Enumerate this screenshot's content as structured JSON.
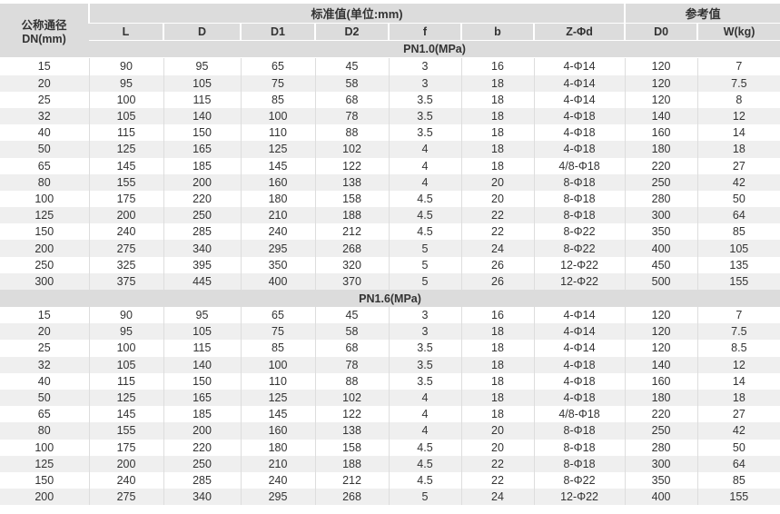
{
  "header": {
    "dn": "公称通径",
    "dn_unit": "DN(mm)",
    "standard": "标准值(单位:mm)",
    "reference": "参考值",
    "columns": [
      "L",
      "D",
      "D1",
      "D2",
      "f",
      "b",
      "Z-Φd",
      "D0",
      "W(kg)"
    ]
  },
  "sections": [
    {
      "title": "PN1.0(MPa)",
      "rows": [
        [
          "15",
          "90",
          "95",
          "65",
          "45",
          "3",
          "16",
          "4-Φ14",
          "120",
          "7"
        ],
        [
          "20",
          "95",
          "105",
          "75",
          "58",
          "3",
          "18",
          "4-Φ14",
          "120",
          "7.5"
        ],
        [
          "25",
          "100",
          "115",
          "85",
          "68",
          "3.5",
          "18",
          "4-Φ14",
          "120",
          "8"
        ],
        [
          "32",
          "105",
          "140",
          "100",
          "78",
          "3.5",
          "18",
          "4-Φ18",
          "140",
          "12"
        ],
        [
          "40",
          "115",
          "150",
          "110",
          "88",
          "3.5",
          "18",
          "4-Φ18",
          "160",
          "14"
        ],
        [
          "50",
          "125",
          "165",
          "125",
          "102",
          "4",
          "18",
          "4-Φ18",
          "180",
          "18"
        ],
        [
          "65",
          "145",
          "185",
          "145",
          "122",
          "4",
          "18",
          "4/8-Φ18",
          "220",
          "27"
        ],
        [
          "80",
          "155",
          "200",
          "160",
          "138",
          "4",
          "20",
          "8-Φ18",
          "250",
          "42"
        ],
        [
          "100",
          "175",
          "220",
          "180",
          "158",
          "4.5",
          "20",
          "8-Φ18",
          "280",
          "50"
        ],
        [
          "125",
          "200",
          "250",
          "210",
          "188",
          "4.5",
          "22",
          "8-Φ18",
          "300",
          "64"
        ],
        [
          "150",
          "240",
          "285",
          "240",
          "212",
          "4.5",
          "22",
          "8-Φ22",
          "350",
          "85"
        ],
        [
          "200",
          "275",
          "340",
          "295",
          "268",
          "5",
          "24",
          "8-Φ22",
          "400",
          "105"
        ],
        [
          "250",
          "325",
          "395",
          "350",
          "320",
          "5",
          "26",
          "12-Φ22",
          "450",
          "135"
        ],
        [
          "300",
          "375",
          "445",
          "400",
          "370",
          "5",
          "26",
          "12-Φ22",
          "500",
          "155"
        ]
      ]
    },
    {
      "title": "PN1.6(MPa)",
      "rows": [
        [
          "15",
          "90",
          "95",
          "65",
          "45",
          "3",
          "16",
          "4-Φ14",
          "120",
          "7"
        ],
        [
          "20",
          "95",
          "105",
          "75",
          "58",
          "3",
          "18",
          "4-Φ14",
          "120",
          "7.5"
        ],
        [
          "25",
          "100",
          "115",
          "85",
          "68",
          "3.5",
          "18",
          "4-Φ14",
          "120",
          "8.5"
        ],
        [
          "32",
          "105",
          "140",
          "100",
          "78",
          "3.5",
          "18",
          "4-Φ18",
          "140",
          "12"
        ],
        [
          "40",
          "115",
          "150",
          "110",
          "88",
          "3.5",
          "18",
          "4-Φ18",
          "160",
          "14"
        ],
        [
          "50",
          "125",
          "165",
          "125",
          "102",
          "4",
          "18",
          "4-Φ18",
          "180",
          "18"
        ],
        [
          "65",
          "145",
          "185",
          "145",
          "122",
          "4",
          "18",
          "4/8-Φ18",
          "220",
          "27"
        ],
        [
          "80",
          "155",
          "200",
          "160",
          "138",
          "4",
          "20",
          "8-Φ18",
          "250",
          "42"
        ],
        [
          "100",
          "175",
          "220",
          "180",
          "158",
          "4.5",
          "20",
          "8-Φ18",
          "280",
          "50"
        ],
        [
          "125",
          "200",
          "250",
          "210",
          "188",
          "4.5",
          "22",
          "8-Φ18",
          "300",
          "64"
        ],
        [
          "150",
          "240",
          "285",
          "240",
          "212",
          "4.5",
          "22",
          "8-Φ22",
          "350",
          "85"
        ],
        [
          "200",
          "275",
          "340",
          "295",
          "268",
          "5",
          "24",
          "12-Φ22",
          "400",
          "155"
        ]
      ]
    }
  ]
}
